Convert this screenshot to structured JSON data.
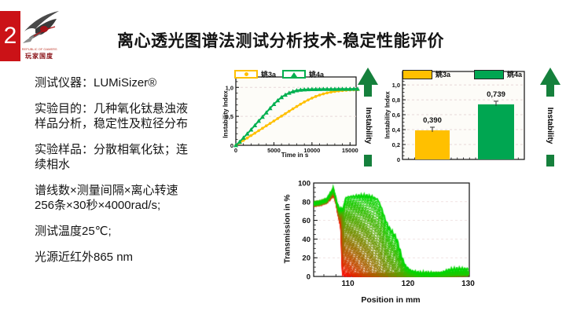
{
  "page": {
    "number": "2",
    "title": "离心透光图谱法测试分析技术-稳定性能评价",
    "accent_red": "#cb1217"
  },
  "logo": {
    "name": "rog-eye-logo",
    "caption_line1": "REPUBLIC OF GAMERS",
    "caption_line2": "玩家国度"
  },
  "info_panel": {
    "paragraphs": [
      [
        "测试仪器：LUMiSizer®"
      ],
      [
        "实验目的：几种氧化钛悬浊液",
        "样品分析，稳定性及粒径分布"
      ],
      [
        "实验样品：分散相氧化钛；连",
        "续相水"
      ],
      [
        "谱线数×测量间隔×离心转速",
        "256条×30秒×4000rad/s;"
      ],
      [
        "测试温度25℃;"
      ],
      [
        "光源近红外865 nm"
      ]
    ]
  },
  "instability_arrow": {
    "label": "Instability",
    "color": "#15803C"
  },
  "chart_data": [
    {
      "type": "line",
      "name": "instability-vs-time",
      "xlabel": "Time in s",
      "ylabel": "Instability Index",
      "xlim": [
        0,
        15800
      ],
      "ylim": [
        0,
        1.18
      ],
      "xticks": [
        0,
        5000,
        10000,
        15000
      ],
      "yticks": [
        0,
        0.5,
        1.0
      ],
      "ytick_labels": [
        "0",
        "0,5",
        "1,0"
      ],
      "x_step": 500,
      "grid": "horizontal-dashed",
      "legend_position": "top",
      "series": [
        {
          "name": "姚3a",
          "color": "#FFC000",
          "marker": "circle",
          "y": [
            0,
            0.042,
            0.084,
            0.126,
            0.168,
            0.21,
            0.252,
            0.294,
            0.336,
            0.378,
            0.42,
            0.462,
            0.504,
            0.546,
            0.588,
            0.63,
            0.67,
            0.71,
            0.748,
            0.783,
            0.815,
            0.843,
            0.868,
            0.888,
            0.905,
            0.918,
            0.929,
            0.938,
            0.945,
            0.95,
            0.954,
            0.957,
            0.96
          ]
        },
        {
          "name": "姚4a",
          "color": "#00B050",
          "marker": "triangle",
          "y": [
            0,
            0.06,
            0.13,
            0.2,
            0.27,
            0.345,
            0.42,
            0.49,
            0.565,
            0.64,
            0.71,
            0.775,
            0.83,
            0.872,
            0.905,
            0.93,
            0.948,
            0.958,
            0.963,
            0.966,
            0.968,
            0.969,
            0.97,
            0.971,
            0.971,
            0.972,
            0.972,
            0.973,
            0.973,
            0.974,
            0.974,
            0.975,
            0.975
          ]
        }
      ]
    },
    {
      "type": "bar",
      "name": "instability-index-bars",
      "ylabel": "Instability Index",
      "ylim": [
        0,
        1.18
      ],
      "yticks": [
        0,
        0.2,
        0.4,
        0.6,
        0.8,
        1.0
      ],
      "ytick_labels": [
        "0",
        "0,2",
        "0,4",
        "0,6",
        "0,8",
        "1,0"
      ],
      "categories": [
        "姚3a",
        "姚4a"
      ],
      "values": [
        0.39,
        0.739
      ],
      "value_labels": [
        "0,390",
        "0,739"
      ],
      "colors": [
        "#FFC000",
        "#00A651"
      ],
      "legend_position": "top"
    },
    {
      "type": "multi-line",
      "name": "transmission-profiles",
      "xlabel": "Position in mm",
      "ylabel": "Transmission in %",
      "xlim": [
        104.3,
        130.2
      ],
      "ylim": [
        0,
        100
      ],
      "xticks": [
        110,
        120,
        130
      ],
      "yticks": [
        0,
        20,
        40,
        60,
        80,
        100
      ],
      "n_scans": 48,
      "scan_color_first": "#FF0000",
      "scan_color_last": "#00DD00",
      "profile_first": [
        [
          104.3,
          77
        ],
        [
          105.5,
          78
        ],
        [
          106.5,
          80
        ],
        [
          107.2,
          84
        ],
        [
          107.6,
          87
        ],
        [
          108.0,
          79
        ],
        [
          108.3,
          68
        ],
        [
          108.6,
          58
        ],
        [
          109.0,
          1.5
        ],
        [
          110,
          1.2
        ],
        [
          112,
          1
        ],
        [
          114,
          1
        ],
        [
          116,
          1
        ],
        [
          118,
          1.2
        ],
        [
          120,
          1.2
        ],
        [
          122,
          1.3
        ],
        [
          124,
          1.5
        ],
        [
          126,
          2
        ],
        [
          128,
          2.5
        ],
        [
          130.2,
          3
        ]
      ],
      "profile_last": [
        [
          104.3,
          78
        ],
        [
          105.5,
          79.5
        ],
        [
          106.5,
          82
        ],
        [
          107.2,
          90
        ],
        [
          107.6,
          94
        ],
        [
          108.0,
          83
        ],
        [
          108.3,
          76
        ],
        [
          108.6,
          71
        ],
        [
          109.0,
          79
        ],
        [
          109.5,
          83
        ],
        [
          110,
          85
        ],
        [
          111,
          85.5
        ],
        [
          112,
          86
        ],
        [
          113,
          86
        ],
        [
          114,
          85
        ],
        [
          115,
          82
        ],
        [
          115.6,
          73
        ],
        [
          116.2,
          61
        ],
        [
          116.8,
          52
        ],
        [
          117.4,
          47
        ],
        [
          118.0,
          42
        ],
        [
          118.5,
          32
        ],
        [
          119.0,
          20
        ],
        [
          119.6,
          11
        ],
        [
          120.5,
          6
        ],
        [
          122,
          3.5
        ],
        [
          124,
          3
        ],
        [
          125.5,
          4
        ],
        [
          127,
          7
        ],
        [
          128.5,
          8
        ],
        [
          130.2,
          8
        ]
      ]
    }
  ]
}
